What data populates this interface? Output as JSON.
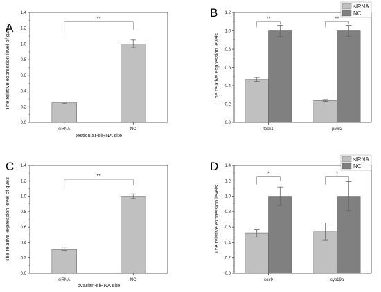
{
  "colors": {
    "siRNA": "#c0c0c0",
    "NC": "#808080",
    "axis": "#333333",
    "bar_stroke": "#555555",
    "error": "#666666"
  },
  "chart_data": [
    {
      "panel": "A",
      "type": "bar",
      "categories": [
        "siRNA",
        "NC"
      ],
      "values": [
        0.25,
        1.0
      ],
      "errors": [
        0.01,
        0.05
      ],
      "xlabel": "testicular-siRNA site",
      "ylabel": "The relative expression level of g2e3",
      "ylim": [
        0,
        1.4
      ],
      "yticks": [
        "0.0",
        "0.2",
        "0.4",
        "0.6",
        "0.8",
        "1.0",
        "1.2",
        "1.4"
      ],
      "significance": [
        {
          "from": 0,
          "to": 1,
          "label": "**",
          "y": 1.28,
          "drop_left": 0.18,
          "drop_right": 0.1
        }
      ],
      "legend": null
    },
    {
      "panel": "B",
      "type": "bar",
      "categories": [
        "tesk1",
        "piwil2"
      ],
      "series": [
        {
          "name": "siRNA",
          "values": [
            0.47,
            0.24
          ],
          "errors": [
            0.02,
            0.01
          ]
        },
        {
          "name": "NC",
          "values": [
            1.0,
            1.0
          ],
          "errors": [
            0.06,
            0.06
          ]
        }
      ],
      "xlabel": "",
      "ylabel": "The relative expression levels",
      "ylim": [
        0,
        1.2
      ],
      "yticks": [
        "0.0",
        "0.2",
        "0.4",
        "0.6",
        "0.8",
        "1.0",
        "1.2"
      ],
      "significance": [
        {
          "group": 0,
          "label": "**",
          "y": 1.1,
          "drop_left": 0.06,
          "drop_right": 0.03
        },
        {
          "group": 1,
          "label": "**",
          "y": 1.1,
          "drop_left": 0.06,
          "drop_right": 0.03
        }
      ],
      "legend": "top-right"
    },
    {
      "panel": "C",
      "type": "bar",
      "categories": [
        "siRNA",
        "NC"
      ],
      "values": [
        0.31,
        1.0
      ],
      "errors": [
        0.02,
        0.03
      ],
      "xlabel": "ovarian-siRNA site",
      "ylabel": "The relative expression level of g2e3",
      "ylim": [
        0,
        1.4
      ],
      "yticks": [
        "0.0",
        "0.2",
        "0.4",
        "0.6",
        "0.8",
        "1.0",
        "1.2",
        "1.4"
      ],
      "significance": [
        {
          "from": 0,
          "to": 1,
          "label": "**",
          "y": 1.22,
          "drop_left": 0.12,
          "drop_right": 0.08
        }
      ],
      "legend": null
    },
    {
      "panel": "D",
      "type": "bar",
      "categories": [
        "sox9",
        "cyp19a"
      ],
      "series": [
        {
          "name": "siRNA",
          "values": [
            0.52,
            0.54
          ],
          "errors": [
            0.05,
            0.11
          ]
        },
        {
          "name": "NC",
          "values": [
            1.0,
            1.0
          ],
          "errors": [
            0.12,
            0.19
          ]
        }
      ],
      "xlabel": "",
      "ylabel": "The relative expression levels",
      "ylim": [
        0,
        1.4
      ],
      "yticks": [
        "0.0",
        "0.2",
        "0.4",
        "0.6",
        "0.8",
        "1.0",
        "1.2",
        "1.4"
      ],
      "significance": [
        {
          "group": 0,
          "label": "*",
          "y": 1.25,
          "drop_left": 0.1,
          "drop_right": 0.05
        },
        {
          "group": 1,
          "label": "*",
          "y": 1.25,
          "drop_left": 0.1,
          "drop_right": 0.05
        }
      ],
      "legend": "top-right"
    }
  ]
}
